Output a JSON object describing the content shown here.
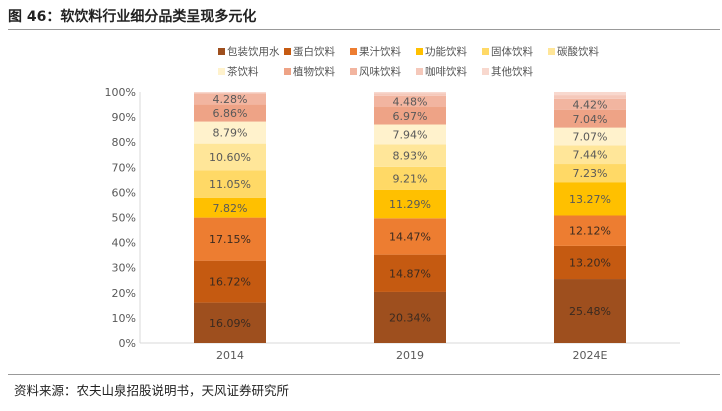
{
  "title": "图 46：软饮料行业细分品类呈现多元化",
  "source": "资料来源：农夫山泉招股说明书，天风证券研究所",
  "chart_data": {
    "type": "bar",
    "stacked": true,
    "categories": [
      "2014",
      "2019",
      "2024E"
    ],
    "ylim": [
      0,
      100
    ],
    "yticks": [
      "0%",
      "10%",
      "20%",
      "30%",
      "40%",
      "50%",
      "60%",
      "70%",
      "80%",
      "90%",
      "100%"
    ],
    "legend_position": "top",
    "series": [
      {
        "name": "包装饮用水",
        "color": "#9E4F1E",
        "values": [
          16.09,
          20.34,
          25.48
        ],
        "labels": [
          "16.09%",
          "20.34%",
          "25.48%"
        ]
      },
      {
        "name": "蛋白饮料",
        "color": "#C55A11",
        "values": [
          16.72,
          14.87,
          13.2
        ],
        "labels": [
          "16.72%",
          "14.87%",
          "13.20%"
        ]
      },
      {
        "name": "果汁饮料",
        "color": "#ED7D31",
        "values": [
          17.15,
          14.47,
          12.12
        ],
        "labels": [
          "17.15%",
          "14.47%",
          "12.12%"
        ]
      },
      {
        "name": "功能饮料",
        "color": "#FFC000",
        "values": [
          7.82,
          11.29,
          13.27
        ],
        "labels": [
          "7.82%",
          "11.29%",
          "13.27%"
        ]
      },
      {
        "name": "固体饮料",
        "color": "#FFD966",
        "values": [
          11.05,
          9.21,
          7.23
        ],
        "labels": [
          "11.05%",
          "9.21%",
          "7.23%"
        ]
      },
      {
        "name": "碳酸饮料",
        "color": "#FFE699",
        "values": [
          10.6,
          8.93,
          7.44
        ],
        "labels": [
          "10.60%",
          "8.93%",
          "7.44%"
        ]
      },
      {
        "name": "茶饮料",
        "color": "#FFF2CC",
        "values": [
          8.79,
          7.94,
          7.07
        ],
        "labels": [
          "8.79%",
          "7.94%",
          "7.07%"
        ]
      },
      {
        "name": "植物饮料",
        "color": "#EEA386",
        "values": [
          6.86,
          6.97,
          7.04
        ],
        "labels": [
          "6.86%",
          "6.97%",
          "7.04%"
        ]
      },
      {
        "name": "风味饮料",
        "color": "#F2B5A0",
        "values": [
          4.28,
          4.48,
          4.42
        ],
        "labels": [
          "4.28%",
          "4.48%",
          "4.42%"
        ]
      },
      {
        "name": "咖啡饮料",
        "color": "#F5C8BA",
        "values": [
          0.4,
          0.9,
          1.5
        ],
        "labels": [
          "",
          "",
          ""
        ]
      },
      {
        "name": "其他饮料",
        "color": "#F8D8CE",
        "values": [
          0.24,
          0.6,
          1.23
        ],
        "labels": [
          "",
          "",
          ""
        ]
      }
    ]
  }
}
